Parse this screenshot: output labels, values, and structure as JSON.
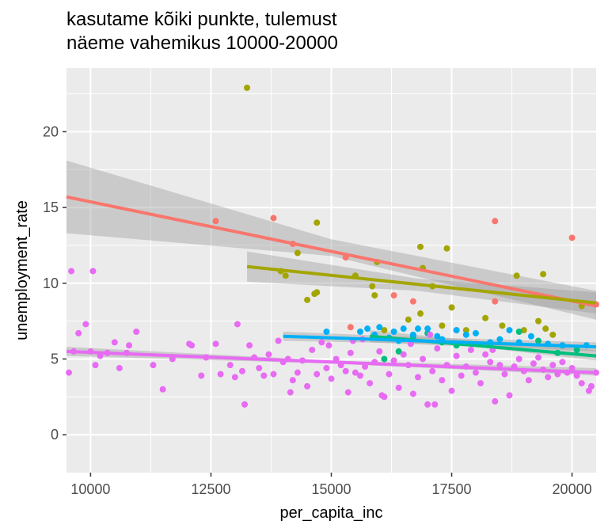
{
  "chart_data": {
    "type": "scatter",
    "title_lines": [
      "kasutame kõiki punkte, tulemust",
      "näeme vahemikus 10000-20000"
    ],
    "xlabel": "per_capita_inc",
    "ylabel": "unemployment_rate",
    "xlim": [
      9500,
      20500
    ],
    "ylim": [
      -2.5,
      24.2
    ],
    "x_ticks": [
      10000,
      12500,
      15000,
      17500,
      20000
    ],
    "x_tick_labels": [
      "10000",
      "12500",
      "15000",
      "17500",
      "20000"
    ],
    "y_ticks": [
      0,
      5,
      10,
      15,
      20
    ],
    "y_tick_labels": [
      "0",
      "5",
      "10",
      "15",
      "20"
    ],
    "grid": true,
    "legend": "none",
    "background": "#ebebeb",
    "band_color": "#999999",
    "series": [
      {
        "color": "#f8766d",
        "points": [
          [
            12600,
            14.1
          ],
          [
            13800,
            14.3
          ],
          [
            14200,
            12.6
          ],
          [
            15300,
            11.7
          ],
          [
            16300,
            9.2
          ],
          [
            16700,
            8.8
          ],
          [
            17600,
            6.9
          ],
          [
            18400,
            14.1
          ],
          [
            18400,
            8.8
          ],
          [
            20000,
            13.0
          ],
          [
            20500,
            8.6
          ],
          [
            15400,
            7.1
          ]
        ],
        "trend": {
          "x": [
            9500,
            20500
          ],
          "y": [
            15.7,
            8.5
          ]
        },
        "band": {
          "x": [
            9500,
            15000,
            20500
          ],
          "lower": [
            13.3,
            11.8,
            7.6
          ],
          "upper": [
            18.1,
            12.9,
            9.5
          ]
        }
      },
      {
        "color": "#a3a500",
        "points": [
          [
            13250,
            22.9
          ],
          [
            13950,
            10.8
          ],
          [
            14050,
            10.5
          ],
          [
            14300,
            12.0
          ],
          [
            14500,
            8.9
          ],
          [
            14650,
            9.3
          ],
          [
            14700,
            9.4
          ],
          [
            14700,
            14.0
          ],
          [
            15500,
            10.5
          ],
          [
            15850,
            9.8
          ],
          [
            15900,
            9.2
          ],
          [
            15950,
            11.4
          ],
          [
            16100,
            6.9
          ],
          [
            16600,
            7.6
          ],
          [
            16850,
            8.0
          ],
          [
            16850,
            12.4
          ],
          [
            16900,
            11.0
          ],
          [
            17100,
            9.8
          ],
          [
            17300,
            7.2
          ],
          [
            17400,
            12.3
          ],
          [
            17500,
            8.4
          ],
          [
            17800,
            6.9
          ],
          [
            18200,
            7.7
          ],
          [
            18550,
            7.2
          ],
          [
            18850,
            10.5
          ],
          [
            19000,
            6.9
          ],
          [
            19300,
            7.5
          ],
          [
            19400,
            10.6
          ],
          [
            19450,
            7.0
          ],
          [
            19600,
            6.6
          ],
          [
            20200,
            8.5
          ]
        ],
        "trend": {
          "x": [
            13250,
            20500
          ],
          "y": [
            11.1,
            8.7
          ]
        },
        "band": {
          "x": [
            13250,
            16800,
            20500
          ],
          "lower": [
            10.1,
            9.5,
            8.0
          ],
          "upper": [
            12.1,
            10.3,
            9.4
          ]
        }
      },
      {
        "color": "#00bf7d",
        "points": [
          [
            16100,
            5.0
          ],
          [
            16200,
            6.4
          ],
          [
            16700,
            6.5
          ],
          [
            17000,
            6.7
          ],
          [
            17300,
            6.1
          ],
          [
            18300,
            6.0
          ],
          [
            18900,
            6.8
          ],
          [
            19300,
            6.2
          ],
          [
            19700,
            5.4
          ],
          [
            20100,
            5.6
          ],
          [
            16400,
            5.5
          ],
          [
            17600,
            5.9
          ]
        ],
        "trend": {
          "x": [
            15800,
            20500
          ],
          "y": [
            6.5,
            5.2
          ]
        },
        "band": {
          "x": [
            15800,
            18000,
            20500
          ],
          "lower": [
            6.1,
            5.8,
            4.9
          ],
          "upper": [
            6.9,
            6.2,
            5.6
          ]
        }
      },
      {
        "color": "#00b0f6",
        "points": [
          [
            14900,
            6.8
          ],
          [
            15600,
            6.8
          ],
          [
            15750,
            7.0
          ],
          [
            15900,
            6.6
          ],
          [
            16000,
            7.1
          ],
          [
            16200,
            6.4
          ],
          [
            16300,
            6.8
          ],
          [
            16500,
            7.0
          ],
          [
            16700,
            6.6
          ],
          [
            16800,
            7.0
          ],
          [
            17000,
            7.0
          ],
          [
            17300,
            6.3
          ],
          [
            17600,
            6.9
          ],
          [
            17800,
            6.6
          ],
          [
            18000,
            6.7
          ],
          [
            18300,
            6.1
          ],
          [
            18500,
            6.3
          ],
          [
            18700,
            6.9
          ],
          [
            18900,
            6.1
          ],
          [
            19150,
            6.5
          ],
          [
            19500,
            6.0
          ],
          [
            19800,
            5.9
          ],
          [
            20300,
            5.9
          ],
          [
            16400,
            6.2
          ],
          [
            17200,
            6.5
          ]
        ],
        "trend": {
          "x": [
            14000,
            20500
          ],
          "y": [
            6.5,
            5.8
          ]
        },
        "band": {
          "x": [
            14000,
            17200,
            20500
          ],
          "lower": [
            6.2,
            6.0,
            5.5
          ],
          "upper": [
            6.8,
            6.4,
            6.1
          ]
        }
      },
      {
        "color": "#e76bf3",
        "points": [
          [
            9550,
            4.1
          ],
          [
            9600,
            10.8
          ],
          [
            9650,
            5.5
          ],
          [
            9750,
            6.7
          ],
          [
            9900,
            7.3
          ],
          [
            10000,
            5.5
          ],
          [
            10050,
            10.8
          ],
          [
            10100,
            4.6
          ],
          [
            10200,
            5.2
          ],
          [
            10350,
            5.4
          ],
          [
            10500,
            6.1
          ],
          [
            10600,
            4.4
          ],
          [
            10750,
            5.4
          ],
          [
            10800,
            5.9
          ],
          [
            10950,
            6.8
          ],
          [
            11300,
            4.6
          ],
          [
            11500,
            3.0
          ],
          [
            11700,
            5.0
          ],
          [
            12100,
            5.9
          ],
          [
            12300,
            3.9
          ],
          [
            12400,
            5.1
          ],
          [
            12600,
            6.0
          ],
          [
            12700,
            4.0
          ],
          [
            12900,
            4.6
          ],
          [
            13000,
            3.8
          ],
          [
            13150,
            4.2
          ],
          [
            13200,
            2.0
          ],
          [
            13300,
            5.9
          ],
          [
            13400,
            5.1
          ],
          [
            13500,
            4.4
          ],
          [
            13600,
            3.9
          ],
          [
            13700,
            5.3
          ],
          [
            13800,
            4.0
          ],
          [
            13900,
            6.2
          ],
          [
            14000,
            4.8
          ],
          [
            14100,
            5.0
          ],
          [
            14200,
            3.6
          ],
          [
            14300,
            4.1
          ],
          [
            14400,
            4.9
          ],
          [
            14500,
            3.2
          ],
          [
            14600,
            5.6
          ],
          [
            14700,
            4.0
          ],
          [
            14800,
            6.1
          ],
          [
            14900,
            4.4
          ],
          [
            15000,
            3.7
          ],
          [
            15100,
            5.0
          ],
          [
            15200,
            4.6
          ],
          [
            15300,
            4.2
          ],
          [
            15350,
            2.8
          ],
          [
            15400,
            5.4
          ],
          [
            15500,
            4.1
          ],
          [
            15600,
            3.9
          ],
          [
            15650,
            6.3
          ],
          [
            15700,
            4.5
          ],
          [
            15800,
            3.4
          ],
          [
            15900,
            4.8
          ],
          [
            16000,
            5.5
          ],
          [
            16100,
            2.5
          ],
          [
            16200,
            4.0
          ],
          [
            16300,
            4.9
          ],
          [
            16400,
            3.1
          ],
          [
            16500,
            5.3
          ],
          [
            16600,
            4.6
          ],
          [
            16700,
            2.7
          ],
          [
            16800,
            3.8
          ],
          [
            16900,
            5.0
          ],
          [
            17000,
            2.0
          ],
          [
            17100,
            4.2
          ],
          [
            17200,
            5.7
          ],
          [
            17300,
            3.6
          ],
          [
            17400,
            4.6
          ],
          [
            17500,
            2.9
          ],
          [
            17600,
            5.2
          ],
          [
            17700,
            3.9
          ],
          [
            17800,
            4.5
          ],
          [
            17900,
            5.6
          ],
          [
            18000,
            4.1
          ],
          [
            18100,
            3.4
          ],
          [
            18200,
            5.3
          ],
          [
            18300,
            4.8
          ],
          [
            18400,
            2.2
          ],
          [
            18500,
            4.6
          ],
          [
            18600,
            4.0
          ],
          [
            18700,
            2.6
          ],
          [
            18800,
            4.5
          ],
          [
            18900,
            5.0
          ],
          [
            19000,
            4.2
          ],
          [
            19100,
            3.6
          ],
          [
            19200,
            4.7
          ],
          [
            19300,
            5.1
          ],
          [
            19400,
            4.3
          ],
          [
            19500,
            3.8
          ],
          [
            19600,
            4.6
          ],
          [
            19700,
            4.0
          ],
          [
            19800,
            4.8
          ],
          [
            19900,
            4.1
          ],
          [
            20000,
            4.4
          ],
          [
            20100,
            3.9
          ],
          [
            20200,
            3.4
          ],
          [
            20350,
            2.9
          ],
          [
            20400,
            3.2
          ],
          [
            20500,
            4.1
          ],
          [
            14950,
            5.9
          ],
          [
            15450,
            6.2
          ],
          [
            16650,
            6.0
          ],
          [
            17050,
            6.6
          ],
          [
            18350,
            5.6
          ],
          [
            13050,
            7.3
          ],
          [
            12050,
            6.0
          ],
          [
            14150,
            2.8
          ],
          [
            16050,
            2.6
          ],
          [
            17150,
            2.0
          ]
        ],
        "trend": {
          "x": [
            9500,
            20500
          ],
          "y": [
            5.5,
            4.1
          ]
        },
        "band": {
          "x": [
            9500,
            15000,
            20500
          ],
          "lower": [
            5.2,
            4.7,
            3.9
          ],
          "upper": [
            5.8,
            4.9,
            4.4
          ]
        }
      }
    ]
  }
}
